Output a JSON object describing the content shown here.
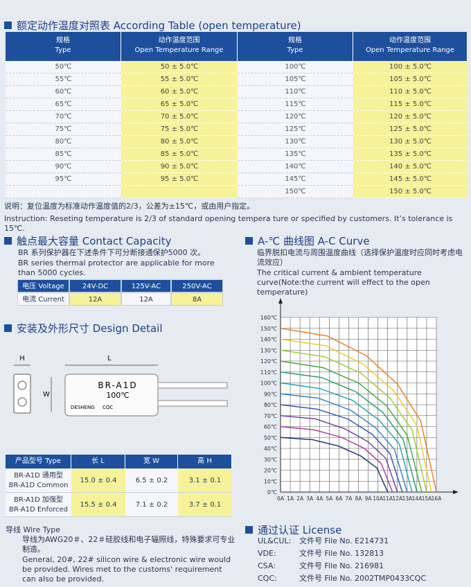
{
  "temp_table": {
    "title": "额定动作温度对照表 According Table (open temperature)",
    "headers": [
      [
        "规格",
        "Type"
      ],
      [
        "动作温度范围",
        "Open Temperature Range"
      ],
      [
        "规格",
        "Type"
      ],
      [
        "动作温度范围",
        "Open Temperature Range"
      ]
    ],
    "left": [
      [
        "50℃",
        "50 ± 5.0℃"
      ],
      [
        "55℃",
        "55 ± 5.0℃"
      ],
      [
        "60℃",
        "60 ± 5.0℃"
      ],
      [
        "65℃",
        "65 ± 5.0℃"
      ],
      [
        "70℃",
        "70 ± 5.0℃"
      ],
      [
        "75℃",
        "75 ± 5.0℃"
      ],
      [
        "80℃",
        "80 ± 5.0℃"
      ],
      [
        "85℃",
        "85 ± 5.0℃"
      ],
      [
        "90℃",
        "90 ± 5.0℃"
      ],
      [
        "95℃",
        "95 ± 5.0℃"
      ]
    ],
    "right": [
      [
        "100℃",
        "100 ± 5.0℃"
      ],
      [
        "105℃",
        "105 ± 5.0℃"
      ],
      [
        "110℃",
        "110 ± 5.0℃"
      ],
      [
        "115℃",
        "115 ± 5.0℃"
      ],
      [
        "120℃",
        "120 ± 5.0℃"
      ],
      [
        "125℃",
        "125 ± 5.0℃"
      ],
      [
        "130℃",
        "130 ± 5.0℃"
      ],
      [
        "135℃",
        "135 ± 5.0℃"
      ],
      [
        "140℃",
        "140 ± 5.0℃"
      ],
      [
        "145℃",
        "145 ± 5.0℃"
      ],
      [
        "150℃",
        "150 ± 5.0℃"
      ]
    ],
    "note_zh": "说明：复位温度为标准动作温度值的2/3，公差为±15℃，或由用户指定。",
    "note_en": "Instruction: Reseting temperature is 2/3 of standard opening tempera ture or specified by customers. It’s tolerance is 15℃."
  },
  "contact": {
    "title": "触点最大容量 Contact Capacity",
    "text_zh": "BR 系列保护器在下述条件下可分断接通保护5000 次。",
    "text_en": "BR series thermal protector are applicable for more than 5000 cycles.",
    "rows": [
      [
        "电压 Voltage",
        "24V-DC",
        "125V-AC",
        "250V-AC"
      ],
      [
        "电流 Current",
        "12A",
        "12A",
        "8A"
      ]
    ]
  },
  "design": {
    "title": "安装及外形尺寸 Design Detail",
    "labels": {
      "h": "H",
      "l": "L",
      "w": "W"
    },
    "device": {
      "model": "BR-A1D",
      "temp": "100℃",
      "brand": "DESHENG",
      "mark": "CQC"
    },
    "headers": [
      "产品型号 Type",
      "长 L",
      "宽 W",
      "高 H"
    ],
    "rows": [
      [
        [
          "BR-A1D 通用型",
          "BR-A1D Common"
        ],
        "15.0 ± 0.4",
        "6.5 ± 0.2",
        "3.1 ± 0.1"
      ],
      [
        [
          "BR-A1D 加强型",
          "BR-A1D Enforced"
        ],
        "15.5 ± 0.4",
        "7.1 ± 0.2",
        "3.7 ± 0.1"
      ]
    ]
  },
  "wire": {
    "title": "导线 Wire Type",
    "text_zh": "导线为AWG20＃、22＃硅胶线和电子辐照线，特殊要求可专业制造。",
    "text_en": "General, 20#, 22# silicon wire & electronic wire would be provided. Wires met to the customs' requirement can also be provided."
  },
  "ac_curve": {
    "title": "A-℃ 曲线图 A-C Curve",
    "text_zh": "临界脱扣电流与周围温度曲线（选择保护温度时应同时考虑电流效应）",
    "text_en": "The critical current & ambient temperature curve(Note:the current will effect to the open temperature)"
  },
  "chart_data": {
    "type": "line",
    "xlim": [
      0,
      16
    ],
    "ylim": [
      0,
      160
    ],
    "grid": true,
    "xticks": [
      {
        "value": 0,
        "label": "0A"
      },
      {
        "value": 1,
        "label": "1A"
      },
      {
        "value": 2,
        "label": "2A"
      },
      {
        "value": 3,
        "label": "3A"
      },
      {
        "value": 4,
        "label": "4A"
      },
      {
        "value": 5,
        "label": "5A"
      },
      {
        "value": 6,
        "label": "6A"
      },
      {
        "value": 7,
        "label": "7A"
      },
      {
        "value": 8,
        "label": "8A"
      },
      {
        "value": 9,
        "label": "9A"
      },
      {
        "value": 10,
        "label": "10A"
      },
      {
        "value": 11,
        "label": "11A"
      },
      {
        "value": 12,
        "label": "12A"
      },
      {
        "value": 13,
        "label": "13A"
      },
      {
        "value": 14,
        "label": "14A"
      },
      {
        "value": 15,
        "label": "15A"
      },
      {
        "value": 16,
        "label": "16A"
      }
    ],
    "yticks": [
      {
        "value": 0,
        "label": "0℃"
      },
      {
        "value": 10,
        "label": "10℃"
      },
      {
        "value": 20,
        "label": "20℃"
      },
      {
        "value": 30,
        "label": "30℃"
      },
      {
        "value": 40,
        "label": "40℃"
      },
      {
        "value": 50,
        "label": "50℃"
      },
      {
        "value": 60,
        "label": "60℃"
      },
      {
        "value": 70,
        "label": "70℃"
      },
      {
        "value": 80,
        "label": "80℃"
      },
      {
        "value": 90,
        "label": "90℃"
      },
      {
        "value": 100,
        "label": "100℃"
      },
      {
        "value": 110,
        "label": "110℃"
      },
      {
        "value": 120,
        "label": "120℃"
      },
      {
        "value": 130,
        "label": "130℃"
      },
      {
        "value": 140,
        "label": "140℃"
      },
      {
        "value": 150,
        "label": "150℃"
      },
      {
        "value": 160,
        "label": "160℃"
      }
    ],
    "series": [
      {
        "color": "#f07a1a",
        "x": [
          0,
          4.8,
          8.8,
          12,
          14.4,
          16
        ],
        "values": [
          150,
          143,
          125,
          99,
          65,
          0
        ]
      },
      {
        "color": "#f2c81e",
        "x": [
          0,
          4.65,
          8.5,
          11.6,
          14,
          15.5
        ],
        "values": [
          140,
          134,
          117,
          93,
          61,
          0
        ]
      },
      {
        "color": "#9ccc2a",
        "x": [
          0,
          4.5,
          8.25,
          11.25,
          13.5,
          15
        ],
        "values": [
          130,
          124,
          109,
          86,
          57,
          0
        ]
      },
      {
        "color": "#3aa83a",
        "x": [
          0,
          4.35,
          8,
          10.9,
          13,
          14.5
        ],
        "values": [
          120,
          114,
          100,
          79,
          52,
          0
        ]
      },
      {
        "color": "#1e9a6a",
        "x": [
          0,
          4.2,
          7.7,
          10.5,
          12.6,
          14
        ],
        "values": [
          110,
          105,
          92,
          73,
          48,
          0
        ]
      },
      {
        "color": "#1aa0b0",
        "x": [
          0,
          4,
          7.4,
          10.1,
          12.2,
          13.5
        ],
        "values": [
          100,
          95,
          84,
          66,
          44,
          0
        ]
      },
      {
        "color": "#2a7fd0",
        "x": [
          0,
          3.9,
          7.2,
          9.75,
          11.7,
          13
        ],
        "values": [
          90,
          86,
          75,
          59,
          39,
          0
        ]
      },
      {
        "color": "#2a4fb8",
        "x": [
          0,
          3.75,
          6.9,
          9.4,
          11.25,
          12.5
        ],
        "values": [
          80,
          76,
          67,
          53,
          35,
          0
        ]
      },
      {
        "color": "#6a3aa8",
        "x": [
          0,
          3.6,
          6.6,
          9,
          10.8,
          12
        ],
        "values": [
          70,
          67,
          58,
          46,
          31,
          0
        ]
      },
      {
        "color": "#b0309a",
        "x": [
          0,
          3.45,
          6.3,
          8.6,
          10.35,
          11.5
        ],
        "values": [
          60,
          57,
          50,
          40,
          26,
          0
        ]
      },
      {
        "color": "#1a2a70",
        "x": [
          0,
          3.3,
          6,
          8.25,
          9.9,
          11
        ],
        "values": [
          50,
          48,
          42,
          33,
          22,
          0
        ]
      }
    ]
  },
  "license": {
    "title": "通过认证 License",
    "rows": [
      [
        "UL&CUL:",
        "文件号 File No. E214731"
      ],
      [
        "VDE:",
        "文件号 File No. 132813"
      ],
      [
        "CSA:",
        "文件号 File No. 216981"
      ],
      [
        "CQC:",
        "文件号 File No. 2002TMP0433CQC"
      ]
    ]
  }
}
